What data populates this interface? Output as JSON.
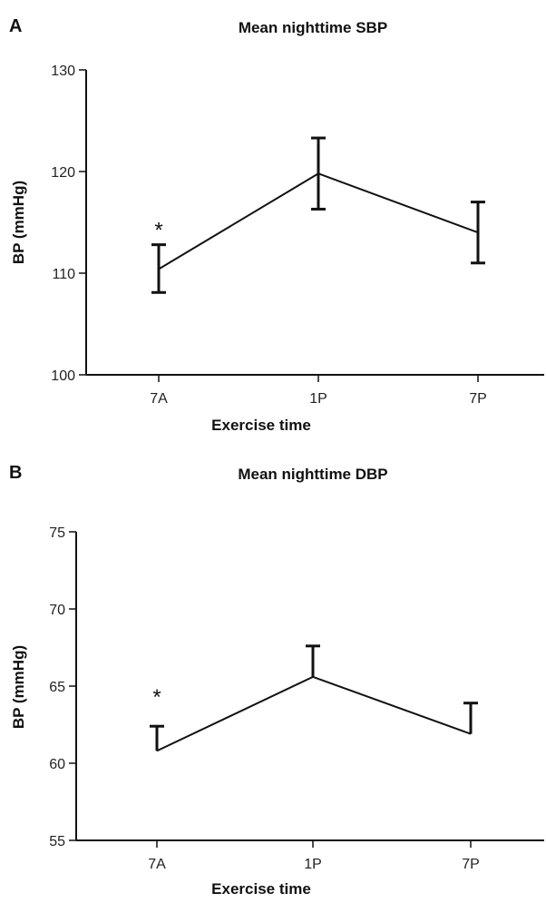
{
  "chart_data": [
    {
      "type": "line",
      "panel_label": "A",
      "title": "Mean nighttime SBP",
      "xlabel": "Exercise time",
      "ylabel": "BP (mmHg)",
      "categories": [
        "7A",
        "1P",
        "7P"
      ],
      "yticks": [
        "100",
        "110",
        "120",
        "130"
      ],
      "ylim": [
        100,
        130
      ],
      "series": [
        {
          "values": [
            110.4,
            119.8,
            114.0
          ],
          "error_upper": [
            112.8,
            123.3,
            117.0
          ],
          "error_lower": [
            108.1,
            116.3,
            111.0
          ],
          "error_style": "both"
        }
      ],
      "annotations": [
        {
          "text": "*",
          "category": "7A"
        }
      ]
    },
    {
      "type": "line",
      "panel_label": "B",
      "title": "Mean nighttime DBP",
      "xlabel": "Exercise time",
      "ylabel": "BP (mmHg)",
      "categories": [
        "7A",
        "1P",
        "7P"
      ],
      "yticks": [
        "55",
        "60",
        "65",
        "70",
        "75"
      ],
      "ylim": [
        55,
        75
      ],
      "series": [
        {
          "values": [
            60.8,
            65.6,
            61.9
          ],
          "error_upper": [
            62.4,
            67.6,
            63.9
          ],
          "error_style": "upper"
        }
      ],
      "annotations": [
        {
          "text": "*",
          "category": "7A"
        }
      ]
    }
  ]
}
